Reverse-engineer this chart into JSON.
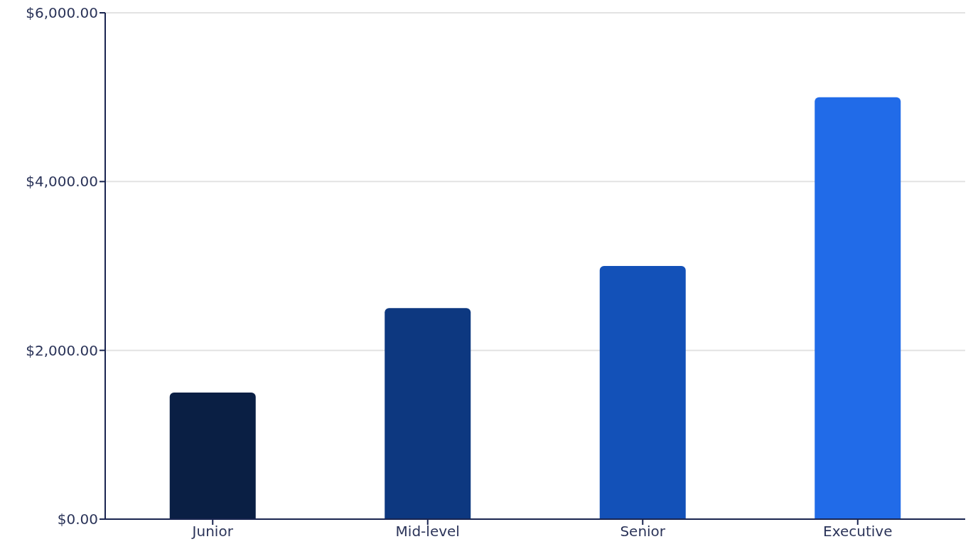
{
  "chart_data": {
    "type": "bar",
    "categories": [
      "Junior",
      "Mid-level",
      "Senior",
      "Executive"
    ],
    "values": [
      1500,
      2500,
      3000,
      5000
    ],
    "colors": [
      "#0a1f44",
      "#0d3880",
      "#1351b8",
      "#216be8"
    ],
    "ylim": [
      0,
      6000
    ],
    "yticks": [
      {
        "value": 0,
        "label": "$0.00"
      },
      {
        "value": 2000,
        "label": "$2,000.00"
      },
      {
        "value": 4000,
        "label": "$4,000.00"
      },
      {
        "value": 6000,
        "label": "$6,000.00"
      }
    ],
    "grid": "y"
  }
}
